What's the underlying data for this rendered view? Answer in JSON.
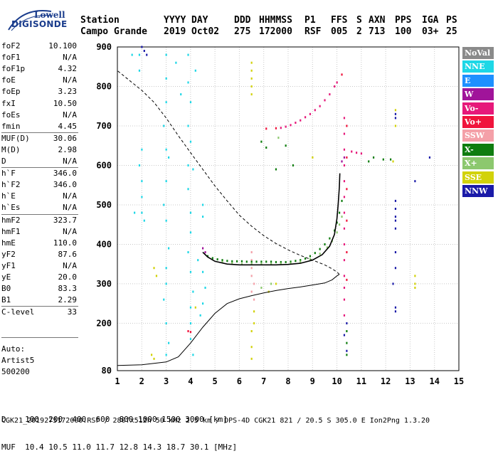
{
  "logo": {
    "line1": "Lowell",
    "line2": "DIGISONDE"
  },
  "header": {
    "station_label": "Station",
    "station_value": "Campo Grande",
    "yyyy_label": "YYYY",
    "yyyy_value": "2019",
    "day_label": "DAY",
    "day_value": "Oct02",
    "ddd_label": "DDD",
    "ddd_value": "275",
    "hhmmss_label": "HHMMSS",
    "hhmmss_value": "172000",
    "p1_label": "P1",
    "p1_value": "RSF",
    "ffs_label": "FFS",
    "ffs_value": "005",
    "s_label": "S",
    "s_value": "2",
    "axn_label": "AXN",
    "axn_value": "713",
    "pps_label": "PPS",
    "pps_value": "100",
    "iga_label": "IGA",
    "iga_value": "03+",
    "ps_label": "PS",
    "ps_value": "25"
  },
  "params": [
    {
      "key": "foF2",
      "value": "10.100"
    },
    {
      "key": "foF1",
      "value": "N/A"
    },
    {
      "key": "foF1p",
      "value": "4.32"
    },
    {
      "key": "foE",
      "value": "N/A"
    },
    {
      "key": "foEp",
      "value": "3.23"
    },
    {
      "key": "fxI",
      "value": "10.50"
    },
    {
      "key": "foEs",
      "value": "N/A"
    },
    {
      "key": "fmin",
      "value": "4.45"
    },
    {
      "key": "MUF(D)",
      "value": "30.06"
    },
    {
      "key": "M(D)",
      "value": "2.98"
    },
    {
      "key": "D",
      "value": "N/A"
    },
    {
      "key": "h`F",
      "value": "346.0"
    },
    {
      "key": "h`F2",
      "value": "346.0"
    },
    {
      "key": "h`E",
      "value": "N/A"
    },
    {
      "key": "h`Es",
      "value": "N/A"
    },
    {
      "key": "hmF2",
      "value": "323.7"
    },
    {
      "key": "hmF1",
      "value": "N/A"
    },
    {
      "key": "hmE",
      "value": "110.0"
    },
    {
      "key": "yF2",
      "value": "87.6"
    },
    {
      "key": "yF1",
      "value": "N/A"
    },
    {
      "key": "yE",
      "value": "20.0"
    },
    {
      "key": "B0",
      "value": "83.3"
    },
    {
      "key": "B1",
      "value": "2.29"
    },
    {
      "key": "C-level",
      "value": "33"
    }
  ],
  "notes": {
    "line1": "Auto:",
    "line2": "Artist5",
    "line3": "500200"
  },
  "legend": [
    {
      "label": "NoVal",
      "color": "#8a8a8a"
    },
    {
      "label": "NNE",
      "color": "#1ed7e6"
    },
    {
      "label": "E",
      "color": "#1e90ff"
    },
    {
      "label": "W",
      "color": "#a0149a"
    },
    {
      "label": "Vo-",
      "color": "#e6197a"
    },
    {
      "label": "Vo+",
      "color": "#f0143c"
    },
    {
      "label": "SSW",
      "color": "#f4a0a8"
    },
    {
      "label": "X-",
      "color": "#0f7d0f"
    },
    {
      "label": "X+",
      "color": "#8cc86e"
    },
    {
      "label": "SSE",
      "color": "#d2d20a"
    },
    {
      "label": "NNW",
      "color": "#1a1aa8"
    }
  ],
  "bottom": {
    "d_line": "D    100  200  400  600  800 1000 1500 3000 [km]",
    "muf_line": "MUF  10.4 10.5 11.0 11.7 12.8 14.3 18.7 30.1 [MHz]"
  },
  "footer": "CGK21_2019275172000.RSF / 280fx512h 50 kHz 2.5 km / DPS-4D CGK21 821 / 20.5 S 305.0 E Ion2Png 1.3.20",
  "chart_data": {
    "type": "scatter",
    "xlabel": "",
    "ylabel": "",
    "xlim": [
      1,
      15
    ],
    "ylim": [
      80,
      900
    ],
    "x_ticks": [
      1,
      2,
      3,
      4,
      5,
      6,
      7,
      8,
      9,
      10,
      11,
      12,
      13,
      14,
      15
    ],
    "y_ticks": [
      80,
      200,
      300,
      400,
      500,
      600,
      700,
      800,
      900
    ],
    "grid": true,
    "series": [
      {
        "name": "NNE",
        "color": "#1ed7e6",
        "points": [
          [
            1.9,
            880
          ],
          [
            1.9,
            840
          ],
          [
            2.0,
            560
          ],
          [
            2.0,
            520
          ],
          [
            2.0,
            480
          ],
          [
            1.7,
            480
          ],
          [
            2.1,
            460
          ],
          [
            1.9,
            600
          ],
          [
            2.0,
            640
          ],
          [
            3.0,
            880
          ],
          [
            3.0,
            820
          ],
          [
            3.0,
            760
          ],
          [
            2.9,
            700
          ],
          [
            3.0,
            640
          ],
          [
            3.1,
            620
          ],
          [
            3.0,
            560
          ],
          [
            2.9,
            500
          ],
          [
            3.0,
            460
          ],
          [
            3.1,
            390
          ],
          [
            3.0,
            340
          ],
          [
            3.0,
            300
          ],
          [
            2.9,
            260
          ],
          [
            3.0,
            200
          ],
          [
            3.1,
            150
          ],
          [
            3.0,
            120
          ],
          [
            3.9,
            880
          ],
          [
            3.9,
            810
          ],
          [
            4.0,
            760
          ],
          [
            3.9,
            700
          ],
          [
            4.0,
            660
          ],
          [
            3.9,
            600
          ],
          [
            3.9,
            540
          ],
          [
            4.0,
            480
          ],
          [
            4.0,
            430
          ],
          [
            3.9,
            380
          ],
          [
            4.0,
            330
          ],
          [
            4.1,
            280
          ],
          [
            4.0,
            240
          ],
          [
            4.0,
            200
          ],
          [
            4.0,
            160
          ],
          [
            4.1,
            120
          ],
          [
            4.5,
            500
          ],
          [
            4.5,
            470
          ],
          [
            4.3,
            360
          ],
          [
            4.5,
            330
          ],
          [
            4.6,
            290
          ],
          [
            4.5,
            250
          ],
          [
            4.4,
            220
          ],
          [
            1.6,
            880
          ],
          [
            4.2,
            840
          ],
          [
            4.1,
            590
          ],
          [
            3.4,
            860
          ],
          [
            3.6,
            780
          ]
        ]
      },
      {
        "name": "W",
        "color": "#a0149a",
        "points": [
          [
            4.5,
            390
          ],
          [
            4.6,
            380
          ],
          [
            10.3,
            620
          ],
          [
            10.2,
            610
          ]
        ]
      },
      {
        "name": "Vo-",
        "color": "#e6197a",
        "points": [
          [
            10.3,
            720
          ],
          [
            10.3,
            680
          ],
          [
            10.3,
            640
          ],
          [
            10.3,
            600
          ],
          [
            10.3,
            560
          ],
          [
            10.3,
            520
          ],
          [
            10.3,
            480
          ],
          [
            10.3,
            440
          ],
          [
            10.3,
            400
          ],
          [
            10.3,
            360
          ],
          [
            10.3,
            320
          ],
          [
            10.3,
            290
          ],
          [
            10.3,
            260
          ],
          [
            10.3,
            220
          ],
          [
            7.7,
            695
          ],
          [
            7.9,
            698
          ],
          [
            8.1,
            702
          ],
          [
            8.3,
            708
          ],
          [
            8.5,
            714
          ],
          [
            8.7,
            722
          ],
          [
            8.9,
            730
          ],
          [
            9.1,
            740
          ],
          [
            9.3,
            750
          ],
          [
            9.5,
            765
          ],
          [
            9.7,
            780
          ],
          [
            9.9,
            800
          ],
          [
            10.0,
            810
          ],
          [
            10.6,
            635
          ],
          [
            10.8,
            632
          ],
          [
            11.0,
            630
          ]
        ]
      },
      {
        "name": "Vo+",
        "color": "#f0143c",
        "points": [
          [
            10.4,
            700
          ],
          [
            10.4,
            620
          ],
          [
            10.4,
            540
          ],
          [
            10.4,
            460
          ],
          [
            10.4,
            380
          ],
          [
            10.4,
            310
          ],
          [
            7.1,
            693
          ],
          [
            7.5,
            694
          ],
          [
            10.2,
            830
          ],
          [
            3.9,
            180
          ],
          [
            4.0,
            178
          ]
        ]
      },
      {
        "name": "SSW",
        "color": "#f4a0a8",
        "points": [
          [
            6.5,
            380
          ],
          [
            6.5,
            360
          ],
          [
            6.5,
            340
          ],
          [
            6.5,
            320
          ],
          [
            6.6,
            300
          ],
          [
            6.5,
            280
          ],
          [
            6.6,
            260
          ]
        ]
      },
      {
        "name": "X-",
        "color": "#0f7d0f",
        "points": [
          [
            4.7,
            370
          ],
          [
            4.9,
            365
          ],
          [
            5.1,
            362
          ],
          [
            5.3,
            360
          ],
          [
            5.5,
            358
          ],
          [
            5.7,
            357
          ],
          [
            5.9,
            357
          ],
          [
            6.1,
            357
          ],
          [
            6.3,
            356
          ],
          [
            6.5,
            356
          ],
          [
            6.7,
            356
          ],
          [
            6.9,
            356
          ],
          [
            7.1,
            356
          ],
          [
            7.3,
            356
          ],
          [
            7.5,
            355
          ],
          [
            7.7,
            355
          ],
          [
            7.9,
            355
          ],
          [
            8.1,
            356
          ],
          [
            8.3,
            358
          ],
          [
            8.5,
            360
          ],
          [
            8.7,
            364
          ],
          [
            8.9,
            370
          ],
          [
            9.1,
            378
          ],
          [
            9.3,
            388
          ],
          [
            9.5,
            400
          ],
          [
            9.7,
            415
          ],
          [
            9.9,
            435
          ],
          [
            10.0,
            455
          ],
          [
            10.1,
            480
          ],
          [
            10.2,
            510
          ],
          [
            11.3,
            610
          ],
          [
            11.5,
            620
          ],
          [
            11.9,
            615
          ],
          [
            12.2,
            615
          ],
          [
            10.4,
            180
          ],
          [
            10.4,
            150
          ],
          [
            10.4,
            120
          ],
          [
            6.9,
            660
          ],
          [
            7.1,
            645
          ],
          [
            7.5,
            590
          ],
          [
            7.9,
            650
          ],
          [
            8.2,
            600
          ]
        ]
      },
      {
        "name": "X+",
        "color": "#8cc86e",
        "points": [
          [
            5.3,
            355
          ],
          [
            5.7,
            352
          ],
          [
            6.1,
            350
          ],
          [
            6.5,
            350
          ],
          [
            6.9,
            350
          ],
          [
            7.3,
            350
          ],
          [
            7.7,
            351
          ],
          [
            8.1,
            352
          ],
          [
            8.5,
            356
          ],
          [
            8.9,
            362
          ],
          [
            9.3,
            376
          ],
          [
            9.6,
            392
          ],
          [
            9.8,
            408
          ],
          [
            10.0,
            430
          ],
          [
            10.1,
            450
          ],
          [
            10.2,
            470
          ],
          [
            7.6,
            670
          ],
          [
            6.9,
            290
          ],
          [
            7.3,
            300
          ]
        ]
      },
      {
        "name": "SSE",
        "color": "#d2d20a",
        "points": [
          [
            6.5,
            860
          ],
          [
            6.5,
            840
          ],
          [
            6.5,
            820
          ],
          [
            6.5,
            800
          ],
          [
            6.5,
            780
          ],
          [
            6.6,
            200
          ],
          [
            6.5,
            180
          ],
          [
            6.5,
            140
          ],
          [
            6.5,
            110
          ],
          [
            6.6,
            230
          ],
          [
            2.5,
            340
          ],
          [
            2.6,
            320
          ],
          [
            2.4,
            120
          ],
          [
            2.5,
            110
          ],
          [
            4.2,
            240
          ],
          [
            12.4,
            740
          ],
          [
            12.4,
            700
          ],
          [
            13.2,
            320
          ],
          [
            13.2,
            300
          ],
          [
            13.2,
            290
          ],
          [
            12.3,
            610
          ],
          [
            7.2,
            280
          ],
          [
            7.5,
            300
          ],
          [
            9.0,
            620
          ]
        ]
      },
      {
        "name": "NNW",
        "color": "#1a1aa8",
        "points": [
          [
            2.0,
            900
          ],
          [
            2.1,
            890
          ],
          [
            2.2,
            880
          ],
          [
            12.4,
            730
          ],
          [
            12.4,
            720
          ],
          [
            12.4,
            510
          ],
          [
            12.4,
            490
          ],
          [
            12.4,
            470
          ],
          [
            12.4,
            460
          ],
          [
            12.4,
            440
          ],
          [
            12.4,
            380
          ],
          [
            12.4,
            340
          ],
          [
            12.3,
            300
          ],
          [
            12.4,
            240
          ],
          [
            12.4,
            230
          ],
          [
            13.2,
            560
          ],
          [
            13.8,
            620
          ],
          [
            10.4,
            200
          ],
          [
            10.3,
            170
          ],
          [
            10.4,
            130
          ]
        ]
      }
    ],
    "profile": {
      "x": [
        1.0,
        2.0,
        3.0,
        3.5,
        4.0,
        4.5,
        5.0,
        5.5,
        6.0,
        6.5,
        7.0,
        7.5,
        8.0,
        8.5,
        9.0,
        9.5,
        9.8,
        10.0,
        10.1
      ],
      "y": [
        93,
        95,
        102,
        115,
        150,
        190,
        225,
        250,
        262,
        270,
        277,
        283,
        288,
        292,
        297,
        302,
        310,
        320,
        324
      ]
    },
    "profile_top": {
      "x": [
        10.1,
        10.0,
        9.8,
        9.5,
        9.0,
        8.5,
        8.0,
        7.5,
        7.0,
        6.5,
        6.0,
        5.5,
        5.0,
        4.5,
        4.0,
        3.5,
        3.0,
        2.5,
        2.0,
        1.5,
        1.0
      ],
      "y": [
        324,
        330,
        338,
        348,
        360,
        372,
        386,
        402,
        422,
        446,
        474,
        510,
        548,
        590,
        632,
        675,
        720,
        760,
        790,
        815,
        840
      ]
    },
    "trace": {
      "x": [
        4.5,
        4.7,
        5.0,
        5.5,
        6.0,
        6.5,
        7.0,
        7.5,
        8.0,
        8.5,
        9.0,
        9.4,
        9.7,
        9.9,
        10.0,
        10.05,
        10.1,
        10.12
      ],
      "y": [
        380,
        368,
        357,
        350,
        348,
        348,
        348,
        348,
        349,
        352,
        360,
        374,
        395,
        425,
        465,
        500,
        545,
        580
      ]
    }
  }
}
